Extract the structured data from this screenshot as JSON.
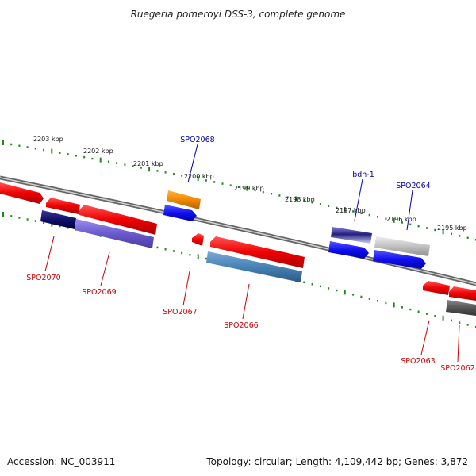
{
  "title": "Ruegeria pomeroyi DSS-3, complete genome",
  "footer": {
    "accession": "Accession: NC_003911",
    "topology": "Topology: circular; Length: 4,109,442 bp; Genes: 3,872"
  },
  "colors": {
    "backbone": "#888888",
    "ticks": "#1e8a1e",
    "forward_label": "#0000aa",
    "reverse_label": "#cc0000"
  },
  "scale_labels": [
    "2203 kbp",
    "2202 kbp",
    "2201 kbp",
    "2200 kbp",
    "2199 kbp",
    "2198 kbp",
    "2197 kbp",
    "2196 kbp",
    "2195 kbp"
  ],
  "forward_labels": [
    {
      "text": "SPO2068",
      "color": "#0000aa"
    },
    {
      "text": "bdh-1",
      "color": "#0000aa"
    },
    {
      "text": "SPO2064",
      "color": "#0000aa"
    }
  ],
  "reverse_labels": [
    {
      "text": "SPO2070",
      "color": "#cc0000"
    },
    {
      "text": "SPO2069",
      "color": "#cc0000"
    },
    {
      "text": "SPO2067",
      "color": "#cc0000"
    },
    {
      "text": "SPO2066",
      "color": "#cc0000"
    },
    {
      "text": "SPO2063",
      "color": "#cc0000"
    },
    {
      "text": "SPO2062",
      "color": "#cc0000"
    }
  ]
}
